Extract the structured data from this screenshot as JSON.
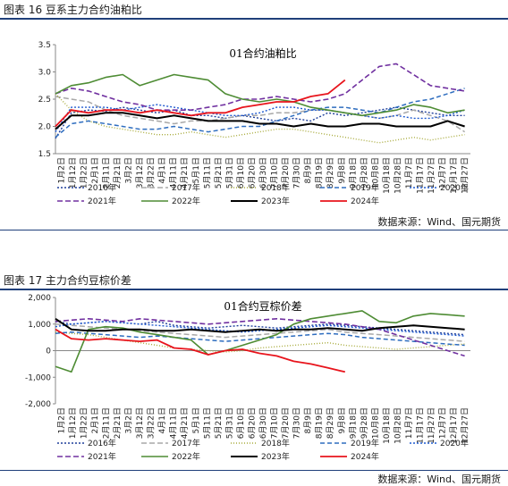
{
  "figures": [
    {
      "caption": "图表 16  豆系主力合约油粕比",
      "source": "数据来源：Wind、国元期货"
    },
    {
      "caption": "图表 17  主力合约豆棕价差",
      "source": "数据来源：Wind、国元期货"
    }
  ],
  "chart_data": [
    {
      "type": "line",
      "title": "01合约油粕比",
      "xlabel": "",
      "ylabel": "",
      "ylim": [
        1.5,
        3.5
      ],
      "yticks": [
        "1.5",
        "2.0",
        "2.5",
        "3.0",
        "3.5"
      ],
      "grid": false,
      "legend_position": "bottom",
      "x_tick_labels": [
        "1月2日",
        "1月12日",
        "1月22日",
        "2月1日",
        "2月11日",
        "2月21日",
        "3月2日",
        "3月12日",
        "3月22日",
        "4月1日",
        "4月11日",
        "4月21日",
        "5月1日",
        "5月11日",
        "5月21日",
        "5月31日",
        "6月10日",
        "6月20日",
        "6月30日",
        "7月10日",
        "7月20日",
        "7月30日",
        "8月9日",
        "8月19日",
        "8月29日",
        "9月8日",
        "9月18日",
        "9月28日",
        "10月8日",
        "10月18日",
        "10月28日",
        "11月7日",
        "11月17日",
        "11月27日",
        "12月7日",
        "12月17日",
        "12月27日"
      ],
      "x": [
        1,
        15,
        30,
        45,
        60,
        75,
        90,
        105,
        120,
        135,
        150,
        165,
        180,
        195,
        210,
        225,
        240,
        255,
        270,
        285,
        300,
        315,
        330,
        345,
        360
      ],
      "series": [
        {
          "name": "2016年",
          "color": "#1f3f9a",
          "dash": "2,2",
          "width": 1.4,
          "values": [
            1.78,
            2.25,
            2.3,
            2.28,
            2.35,
            2.3,
            2.25,
            2.3,
            2.2,
            2.2,
            2.15,
            2.2,
            2.15,
            2.1,
            2.15,
            2.1,
            2.25,
            2.2,
            2.25,
            2.3,
            2.35,
            2.3,
            2.25,
            2.2,
            2.2
          ]
        },
        {
          "name": "2017年",
          "color": "#a8a8a8",
          "dash": "6,3",
          "width": 1.5,
          "values": [
            2.55,
            2.5,
            2.45,
            2.3,
            2.2,
            2.15,
            2.1,
            2.05,
            2.1,
            2.1,
            2.15,
            2.2,
            2.2,
            2.25,
            2.25,
            2.3,
            2.3,
            2.25,
            2.2,
            2.15,
            2.2,
            2.3,
            2.2,
            2.1,
            1.9
          ]
        },
        {
          "name": "2018年",
          "color": "#a8ab3c",
          "dash": "1,2",
          "width": 1.4,
          "values": [
            2.6,
            2.3,
            2.1,
            2.0,
            1.95,
            1.9,
            1.85,
            1.85,
            1.9,
            1.85,
            1.8,
            1.85,
            1.9,
            1.95,
            1.95,
            1.9,
            1.85,
            1.8,
            1.75,
            1.7,
            1.75,
            1.8,
            1.75,
            1.8,
            1.85
          ]
        },
        {
          "name": "2019年",
          "color": "#2e6dbf",
          "dash": "5,3",
          "width": 1.5,
          "values": [
            1.8,
            2.05,
            2.1,
            2.05,
            2.0,
            1.95,
            1.95,
            2.0,
            1.95,
            1.9,
            1.95,
            2.0,
            2.0,
            2.1,
            2.2,
            2.3,
            2.35,
            2.35,
            2.3,
            2.25,
            2.35,
            2.45,
            2.5,
            2.6,
            2.7
          ]
        },
        {
          "name": "2020年",
          "color": "#1f5ad0",
          "dash": "2,2",
          "width": 1.4,
          "values": [
            1.9,
            2.35,
            2.35,
            2.35,
            2.3,
            2.35,
            2.4,
            2.35,
            2.3,
            2.25,
            2.2,
            2.2,
            2.25,
            2.35,
            2.35,
            2.3,
            2.3,
            2.25,
            2.2,
            2.15,
            2.2,
            2.15,
            2.15,
            2.2,
            2.3
          ]
        },
        {
          "name": "2021年",
          "color": "#7030a0",
          "dash": "6,3",
          "width": 1.6,
          "values": [
            2.6,
            2.7,
            2.65,
            2.55,
            2.45,
            2.4,
            2.3,
            2.3,
            2.3,
            2.35,
            2.4,
            2.5,
            2.5,
            2.55,
            2.5,
            2.45,
            2.5,
            2.6,
            2.85,
            3.1,
            3.15,
            2.95,
            2.75,
            2.7,
            2.65
          ]
        },
        {
          "name": "2022年",
          "color": "#4e8c34",
          "dash": "",
          "width": 1.6,
          "values": [
            2.6,
            2.75,
            2.8,
            2.9,
            2.95,
            2.75,
            2.85,
            2.95,
            2.9,
            2.85,
            2.6,
            2.5,
            2.45,
            2.5,
            2.45,
            2.35,
            2.3,
            2.25,
            2.2,
            2.25,
            2.3,
            2.4,
            2.35,
            2.25,
            2.3
          ]
        },
        {
          "name": "2023年",
          "color": "#000000",
          "dash": "",
          "width": 2.0,
          "values": [
            1.95,
            2.2,
            2.2,
            2.25,
            2.25,
            2.2,
            2.15,
            2.2,
            2.15,
            2.1,
            2.1,
            2.1,
            2.05,
            2.05,
            2.0,
            2.05,
            2.0,
            2.0,
            2.05,
            2.05,
            2.0,
            2.0,
            2.0,
            2.1,
            2.0
          ]
        },
        {
          "name": "2024年",
          "color": "#e8141c",
          "dash": "",
          "width": 1.8,
          "values": [
            2.0,
            2.3,
            2.25,
            2.3,
            2.3,
            2.25,
            2.3,
            2.25,
            2.2,
            2.25,
            2.25,
            2.35,
            2.4,
            2.45,
            2.45,
            2.55,
            2.6,
            2.85,
            null,
            null,
            null,
            null,
            null,
            null,
            null
          ]
        }
      ]
    },
    {
      "type": "line",
      "title": "01合约豆棕价差",
      "xlabel": "",
      "ylabel": "",
      "ylim": [
        -2000,
        2000
      ],
      "yticks": [
        "-2,000",
        "-1,000",
        "0",
        "1,000",
        "2,000"
      ],
      "grid": false,
      "legend_position": "bottom",
      "x_tick_labels": [
        "1月2日",
        "1月12日",
        "1月22日",
        "2月1日",
        "2月11日",
        "2月21日",
        "3月2日",
        "3月12日",
        "3月22日",
        "4月1日",
        "4月11日",
        "4月21日",
        "5月1日",
        "5月11日",
        "5月21日",
        "5月31日",
        "6月10日",
        "6月20日",
        "6月30日",
        "7月10日",
        "7月20日",
        "7月30日",
        "8月9日",
        "8月19日",
        "8月29日",
        "9月8日",
        "9月18日",
        "9月28日",
        "10月8日",
        "10月18日",
        "10月28日",
        "11月7日",
        "11月17日",
        "11月27日",
        "12月7日",
        "12月17日",
        "12月27日"
      ],
      "x": [
        1,
        15,
        30,
        45,
        60,
        75,
        90,
        105,
        120,
        135,
        150,
        165,
        180,
        195,
        210,
        225,
        240,
        255,
        270,
        285,
        300,
        315,
        330,
        345,
        360
      ],
      "series": [
        {
          "name": "2016年",
          "color": "#1f3f9a",
          "dash": "2,2",
          "width": 1.4,
          "values": [
            1100,
            1000,
            1050,
            1100,
            1050,
            1000,
            1100,
            950,
            900,
            850,
            900,
            950,
            900,
            850,
            900,
            950,
            1000,
            950,
            900,
            850,
            800,
            750,
            700,
            650,
            600
          ]
        },
        {
          "name": "2017年",
          "color": "#a8a8a8",
          "dash": "6,3",
          "width": 1.5,
          "values": [
            1000,
            950,
            900,
            850,
            800,
            750,
            700,
            650,
            600,
            550,
            500,
            550,
            600,
            650,
            700,
            750,
            800,
            700,
            650,
            600,
            550,
            500,
            450,
            400,
            350
          ]
        },
        {
          "name": "2018年",
          "color": "#a8ab3c",
          "dash": "1,2",
          "width": 1.4,
          "values": [
            700,
            650,
            600,
            500,
            400,
            300,
            200,
            100,
            50,
            0,
            -50,
            0,
            100,
            150,
            200,
            250,
            300,
            200,
            150,
            100,
            50,
            100,
            150,
            200,
            250
          ]
        },
        {
          "name": "2019年",
          "color": "#2e6dbf",
          "dash": "5,3",
          "width": 1.5,
          "values": [
            650,
            700,
            650,
            600,
            550,
            500,
            550,
            500,
            450,
            400,
            350,
            400,
            450,
            500,
            550,
            600,
            650,
            600,
            500,
            450,
            400,
            350,
            300,
            250,
            200
          ]
        },
        {
          "name": "2020年",
          "color": "#1f5ad0",
          "dash": "2,2",
          "width": 1.4,
          "values": [
            900,
            1000,
            1050,
            1100,
            1050,
            1000,
            950,
            900,
            850,
            800,
            750,
            700,
            750,
            800,
            850,
            900,
            950,
            900,
            850,
            800,
            750,
            700,
            650,
            600,
            550
          ]
        },
        {
          "name": "2021年",
          "color": "#7030a0",
          "dash": "6,3",
          "width": 1.6,
          "values": [
            1100,
            1150,
            1200,
            1150,
            1100,
            1200,
            1150,
            1100,
            1050,
            1000,
            1050,
            1100,
            1150,
            1200,
            1150,
            1100,
            1050,
            1000,
            900,
            800,
            600,
            400,
            200,
            0,
            -200
          ]
        },
        {
          "name": "2022年",
          "color": "#4e8c34",
          "dash": "",
          "width": 1.6,
          "values": [
            -600,
            -800,
            800,
            900,
            850,
            700,
            600,
            500,
            400,
            -150,
            0,
            200,
            400,
            600,
            1000,
            1200,
            1300,
            1400,
            1500,
            1100,
            1050,
            1300,
            1400,
            1350,
            1300
          ]
        },
        {
          "name": "2023年",
          "color": "#000000",
          "dash": "",
          "width": 2.0,
          "values": [
            1200,
            800,
            750,
            750,
            800,
            800,
            750,
            750,
            800,
            750,
            700,
            750,
            800,
            750,
            800,
            800,
            850,
            800,
            750,
            850,
            900,
            950,
            900,
            850,
            800
          ]
        },
        {
          "name": "2024年",
          "color": "#e8141c",
          "dash": "",
          "width": 1.8,
          "values": [
            800,
            450,
            400,
            450,
            400,
            350,
            400,
            100,
            50,
            -150,
            0,
            50,
            -100,
            -200,
            -400,
            -500,
            -650,
            -800,
            null,
            null,
            null,
            null,
            null,
            null,
            null
          ]
        }
      ]
    }
  ]
}
